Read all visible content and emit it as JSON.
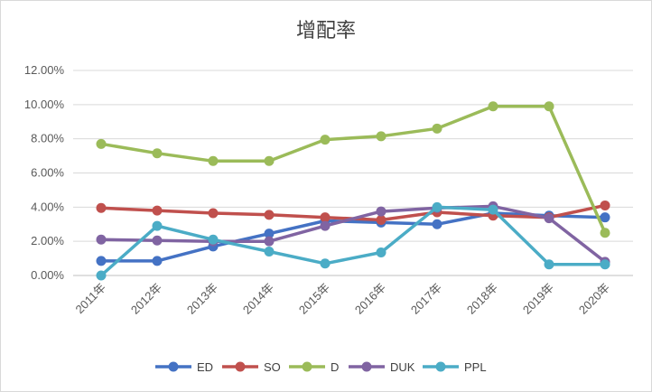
{
  "chart_data": {
    "type": "line",
    "title": "增配率",
    "xlabel": "",
    "ylabel": "",
    "categories": [
      "2011年",
      "2012年",
      "2013年",
      "2014年",
      "2015年",
      "2016年",
      "2017年",
      "2018年",
      "2019年",
      "2020年"
    ],
    "y_ticks": [
      "0.00%",
      "2.00%",
      "4.00%",
      "6.00%",
      "8.00%",
      "10.00%",
      "12.00%"
    ],
    "ylim": [
      0,
      12
    ],
    "y_unit": "%",
    "grid": true,
    "legend_position": "bottom",
    "series": [
      {
        "name": "ED",
        "color": "#4472C4",
        "values": [
          0.85,
          0.85,
          1.7,
          2.45,
          3.2,
          3.1,
          3.0,
          3.65,
          3.5,
          3.4
        ]
      },
      {
        "name": "SO",
        "color": "#C0504D",
        "values": [
          3.95,
          3.8,
          3.65,
          3.55,
          3.4,
          3.25,
          3.7,
          3.5,
          3.4,
          4.1
        ]
      },
      {
        "name": "D",
        "color": "#9BBB59",
        "values": [
          7.7,
          7.15,
          6.7,
          6.7,
          7.95,
          8.15,
          8.6,
          9.9,
          9.9,
          2.5
        ]
      },
      {
        "name": "DUK",
        "color": "#8064A2",
        "values": [
          2.1,
          2.05,
          2.0,
          2.0,
          2.9,
          3.75,
          3.95,
          4.05,
          3.35,
          0.8
        ]
      },
      {
        "name": "PPL",
        "color": "#4BACC6",
        "values": [
          0.0,
          2.9,
          2.1,
          1.4,
          0.7,
          1.35,
          4.0,
          3.85,
          0.65,
          0.65
        ]
      }
    ]
  }
}
